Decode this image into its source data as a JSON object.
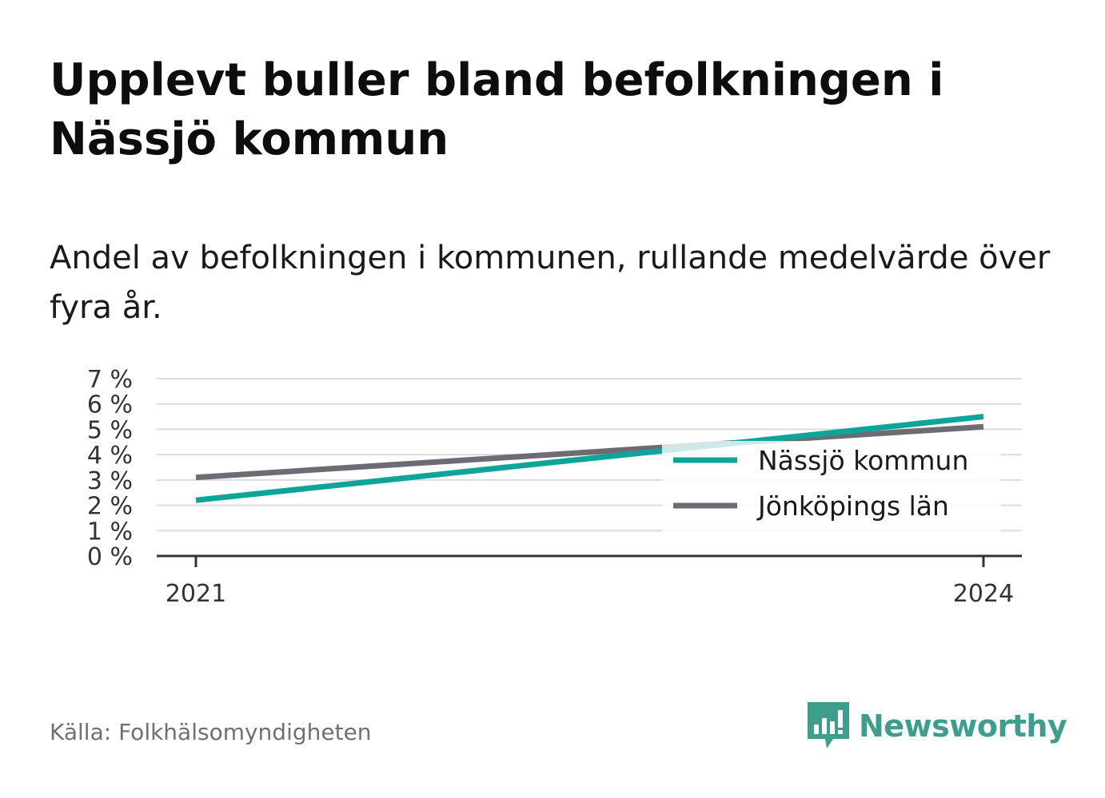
{
  "header": {
    "title": "Upplevt buller bland befolkningen i Nässjö kommun",
    "subtitle": "Andel av befolkningen i kommunen, rullande medelvärde över fyra år."
  },
  "footer": {
    "source": "Källa: Folkhälsomyndigheten",
    "brand": "Newsworthy",
    "brand_icon": "bar-chart-speech-bubble-icon"
  },
  "colors": {
    "series_1": "#0fa49a",
    "series_2": "#6d6c74",
    "grid": "#dcdcdc",
    "axis": "#333333",
    "brand": "#3f9d8e"
  },
  "chart_data": {
    "type": "line",
    "x": [
      2021,
      2024
    ],
    "x_tick_labels": [
      "2021",
      "2024"
    ],
    "y_tick_labels": [
      "0 %",
      "1 %",
      "2 %",
      "3 %",
      "4 %",
      "5 %",
      "6 %",
      "7 %"
    ],
    "ylim": [
      0,
      7
    ],
    "grid": true,
    "legend_position": "bottom-right",
    "series": [
      {
        "name": "Nässjö kommun",
        "values": [
          2.2,
          5.5
        ]
      },
      {
        "name": "Jönköpings län",
        "values": [
          3.1,
          5.1
        ]
      }
    ]
  }
}
